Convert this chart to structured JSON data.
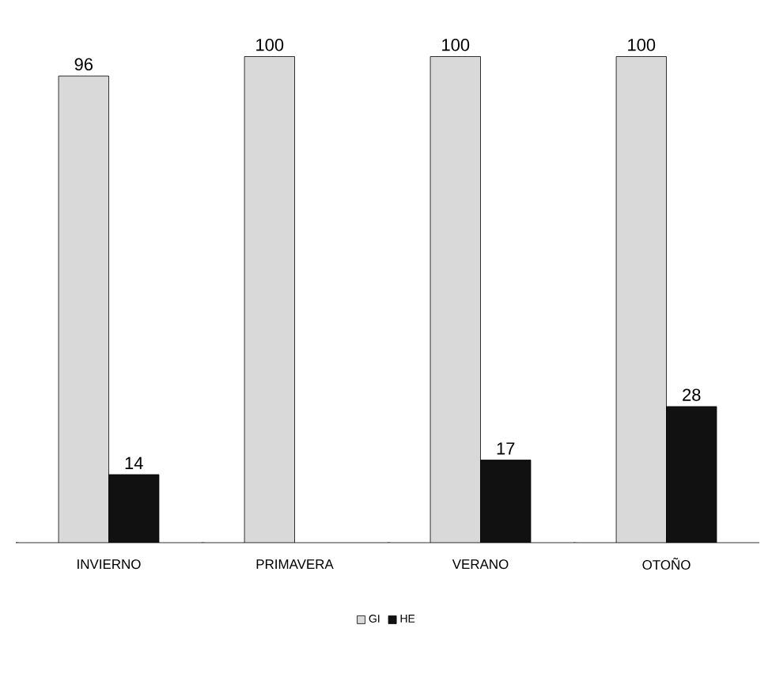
{
  "chart_data": {
    "type": "bar",
    "categories": [
      "INVIERNO",
      "PRIMAVERA",
      "VERANO",
      "OTOÑO"
    ],
    "series": [
      {
        "name": "GI",
        "color": "#d9d9d9",
        "values": [
          96,
          100,
          100,
          100
        ]
      },
      {
        "name": "HE",
        "color": "#111111",
        "values": [
          14,
          null,
          17,
          28
        ]
      }
    ],
    "data_labels": true,
    "legend": "bottom"
  }
}
